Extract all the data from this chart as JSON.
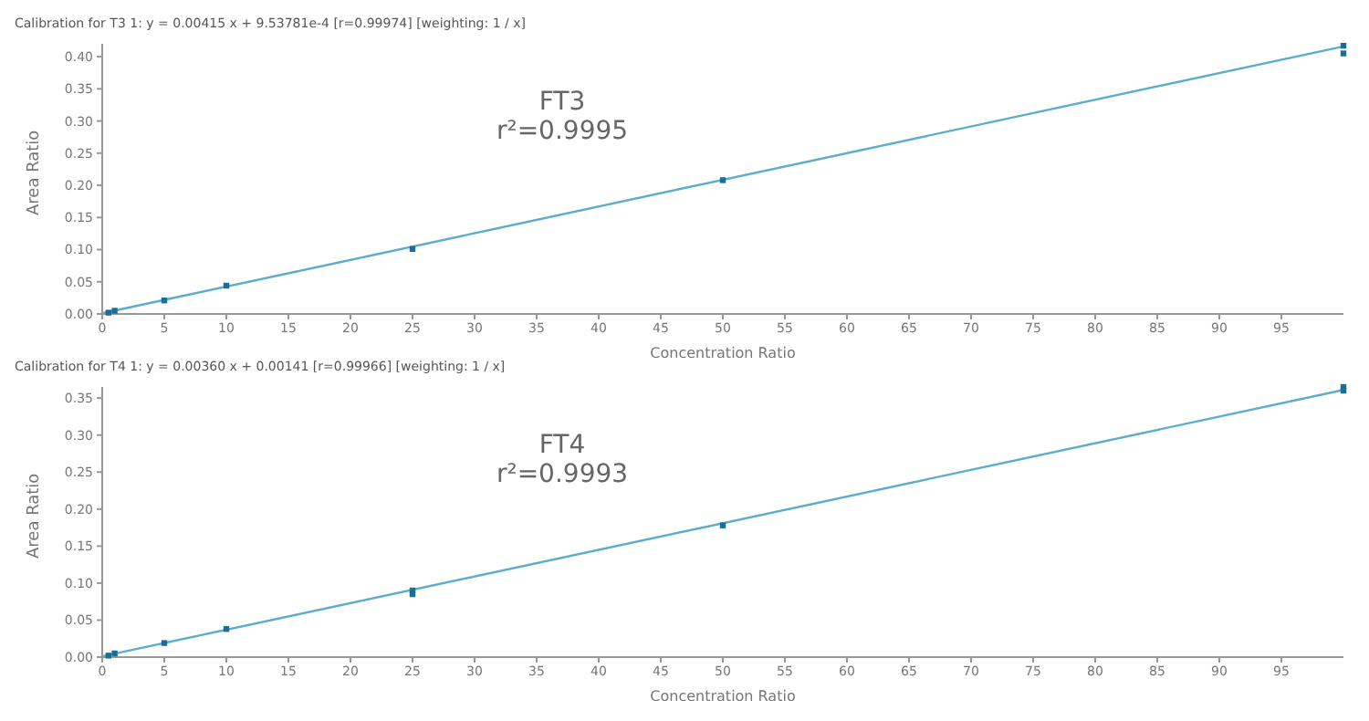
{
  "chart_data": [
    {
      "type": "scatter",
      "title": "Calibration for T3 1: y = 0.00415 x + 9.53781e-4 [r=0.99974] [weighting: 1 / x]",
      "xlabel": "Concentration Ratio",
      "ylabel": "Area Ratio",
      "annotations": [
        "FT3",
        "r²=0.9995"
      ],
      "xlim": [
        0,
        100
      ],
      "xticks": [
        0,
        5,
        10,
        15,
        20,
        25,
        30,
        35,
        40,
        45,
        50,
        55,
        60,
        65,
        70,
        75,
        80,
        85,
        90,
        95
      ],
      "ylim": [
        0,
        0.42
      ],
      "yticks": [
        {
          "value": 0,
          "label": "0.00"
        },
        0.05,
        {
          "value": 0.1,
          "label": "0.10"
        },
        0.15,
        {
          "value": 0.2,
          "label": "0.20"
        },
        0.25,
        {
          "value": 0.3,
          "label": "0.30"
        },
        0.35,
        {
          "value": 0.4,
          "label": "0.40"
        }
      ],
      "grid": false,
      "series": [
        {
          "type": "scatter",
          "marker": "square",
          "color": "#1b6f97",
          "x": [
            0.5,
            1,
            5,
            10,
            25,
            50,
            100,
            100
          ],
          "values": [
            0.002,
            0.005,
            0.021,
            0.044,
            0.101,
            0.208,
            0.417,
            0.405
          ]
        },
        {
          "type": "line",
          "color": "#5aaecc",
          "x": [
            0,
            100
          ],
          "values": [
            0.001,
            0.416
          ]
        }
      ]
    },
    {
      "type": "scatter",
      "title": "Calibration for T4 1: y = 0.00360 x + 0.00141 [r=0.99966] [weighting: 1 / x]",
      "xlabel": "Concentration Ratio",
      "ylabel": "Area Ratio",
      "annotations": [
        "FT4",
        "r²=0.9993"
      ],
      "xlim": [
        0,
        100
      ],
      "xticks": [
        0,
        5,
        10,
        15,
        20,
        25,
        30,
        35,
        40,
        45,
        50,
        55,
        60,
        65,
        70,
        75,
        80,
        85,
        90,
        95
      ],
      "ylim": [
        0,
        0.365
      ],
      "yticks": [
        {
          "value": 0,
          "label": "0.00"
        },
        0.05,
        {
          "value": 0.1,
          "label": "0.10"
        },
        0.15,
        {
          "value": 0.2,
          "label": "0.20"
        },
        0.25,
        {
          "value": 0.3,
          "label": "0.30"
        },
        0.35
      ],
      "grid": false,
      "series": [
        {
          "type": "scatter",
          "marker": "square",
          "color": "#1b6f97",
          "x": [
            0.5,
            1,
            5,
            10,
            25,
            25,
            50,
            100,
            100
          ],
          "values": [
            0.002,
            0.005,
            0.019,
            0.038,
            0.09,
            0.085,
            0.178,
            0.365,
            0.36
          ]
        },
        {
          "type": "line",
          "color": "#5aaecc",
          "x": [
            0,
            100
          ],
          "values": [
            0.001,
            0.361
          ]
        }
      ]
    }
  ]
}
